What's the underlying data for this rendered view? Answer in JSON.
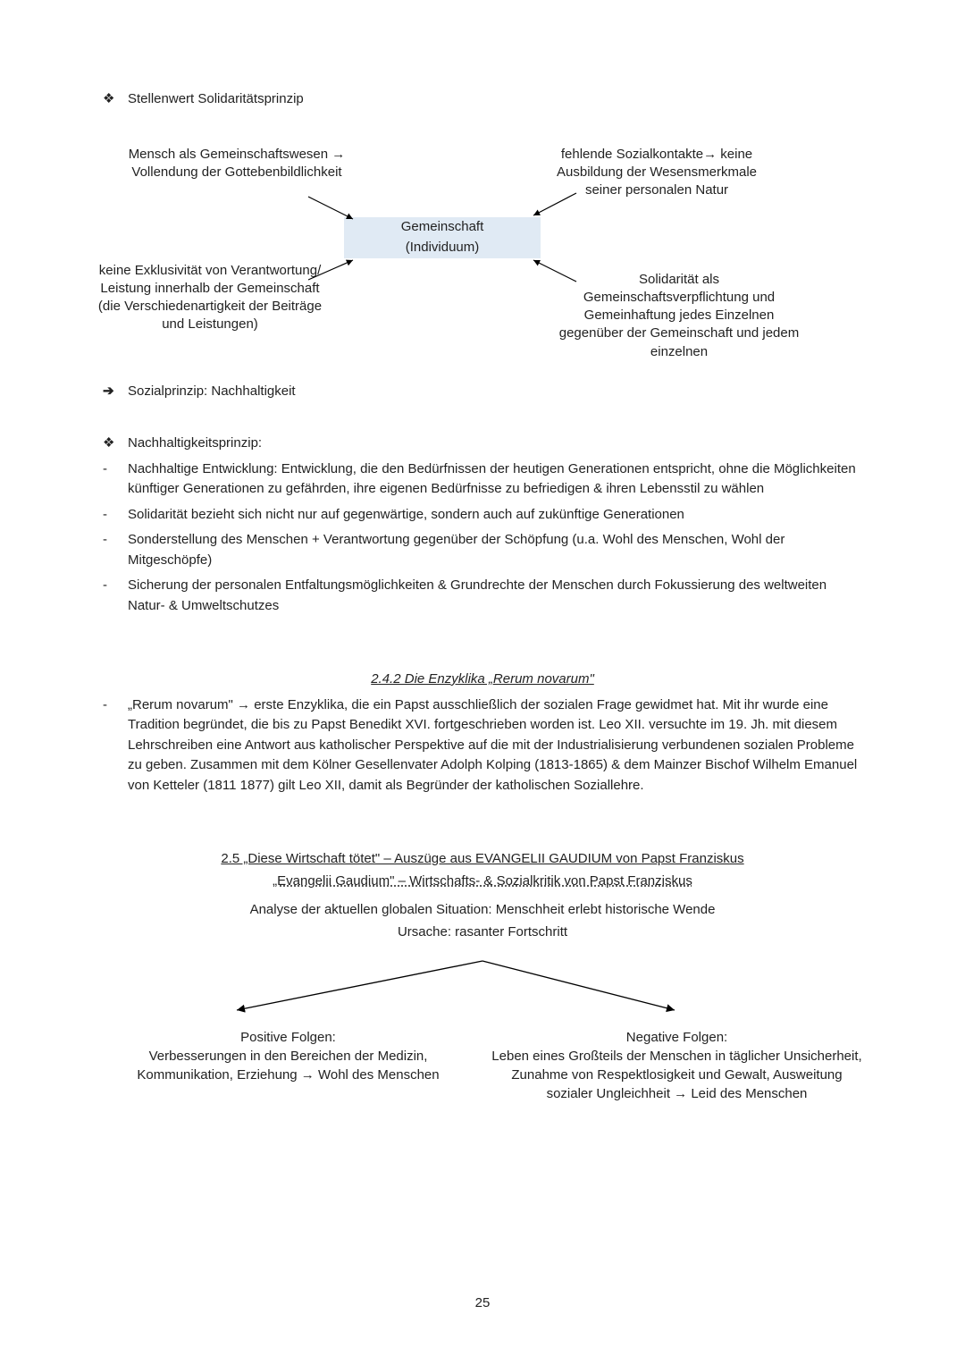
{
  "bullets": {
    "stellenwert": "Stellenwert Solidaritätsprinzip",
    "sozialprinzip": "Sozialprinzip: Nachhaltigkeit",
    "nachhaltigkeit_title": "Nachhaltigkeitsprinzip:",
    "nach_items": [
      "Nachhaltige Entwicklung: Entwicklung, die den Bedürfnissen der heutigen Generationen entspricht, ohne die Möglichkeiten künftiger Generationen zu gefährden, ihre eigenen Bedürfnisse zu befriedigen & ihren Lebensstil zu wählen",
      "Solidarität bezieht sich nicht nur auf gegenwärtige, sondern auch auf zukünftige Generationen",
      "Sonderstellung des Menschen + Verantwortung gegenüber der Schöpfung (u.a. Wohl des Menschen, Wohl der Mitgeschöpfe)",
      "Sicherung der personalen Entfaltungsmöglichkeiten & Grundrechte der Menschen durch Fokussierung des weltweiten Natur- & Umweltschutzes"
    ]
  },
  "diagram": {
    "central_line1": "Gemeinschaft",
    "central_line2": "(Individuum)",
    "tl": "Mensch als Gemeinschaftswesen → Vollendung der Gottebenbildlichkeit",
    "tr": "fehlende Sozialkontakte→ keine Ausbildung der Wesensmerkmale seiner personalen Natur",
    "bl": "keine Exklusivität von Verantwortung/ Leistung innerhalb der Gemeinschaft (die Verschiedenartigkeit der Beiträge und Leistungen)",
    "br": "Solidarität als Gemeinschaftsverpflichtung und Gemeinhaftung jedes Einzelnen gegenüber der Gemeinschaft und jedem einzelnen",
    "box_bg": "#e0eaf4",
    "arrow_color": "#000000"
  },
  "section242": {
    "title": "2.4.2 Die Enzyklika „Rerum novarum\"",
    "para": "„Rerum novarum\" → erste Enzyklika, die ein Papst ausschließlich der sozialen Frage gewidmet hat. Mit ihr wurde eine Tradition begründet, die bis zu Papst Benedikt XVI. fortgeschrieben worden ist. Leo XII. versuchte im 19. Jh. mit diesem Lehrschreiben eine Antwort aus katholischer Perspektive auf die mit der Industrialisierung verbundenen sozialen Probleme zu geben. Zusammen mit dem Kölner Gesellenvater Adolph Kolping (1813-1865) & dem Mainzer Bischof Wilhelm Emanuel von Ketteler (1811 1877) gilt Leo XII, damit als Begründer der katholischen Soziallehre."
  },
  "section25": {
    "line1": "2.5 „Diese Wirtschaft tötet\" – Auszüge aus EVANGELII GAUDIUM von Papst Franziskus",
    "line2": "„Evangelii Gaudium\" – Wirtschafts- & Sozialkritik von Papst Franziskus",
    "analysis1": "Analyse der aktuellen globalen Situation: Menschheit erlebt historische Wende",
    "analysis2": "Ursache: rasanter Fortschritt",
    "pos_title": "Positive Folgen:",
    "pos_body": "Verbesserungen in den Bereichen der Medizin, Kommunikation, Erziehung → Wohl des Menschen",
    "neg_title": "Negative Folgen:",
    "neg_body": "Leben eines Großteils der Menschen in täglicher Unsicherheit, Zunahme von Respektlosigkeit und Gewalt, Ausweitung sozialer Ungleichheit → Leid des Menschen"
  },
  "glyphs": {
    "diamond": "❖",
    "arrow_right_bold": "➔",
    "dash": "-"
  },
  "page_number": "25"
}
